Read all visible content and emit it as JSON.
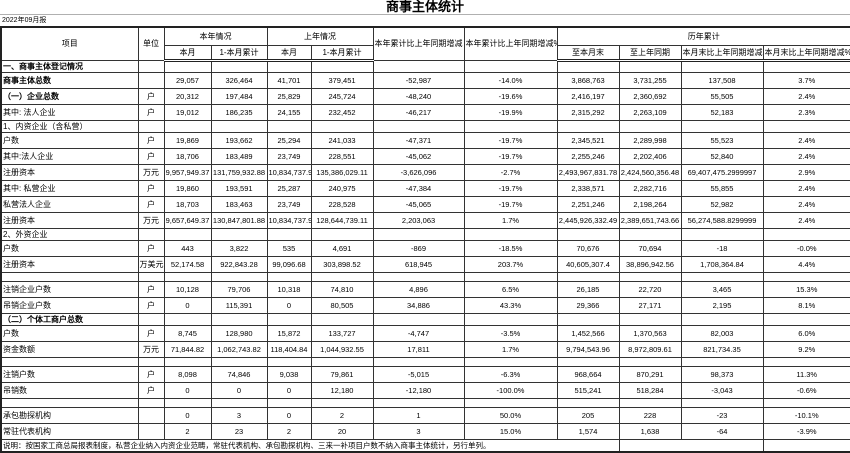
{
  "title": "商事主体统计",
  "report_date": "2022年09月报",
  "header": {
    "item": "项目",
    "unit": "单位",
    "this_year_group": "本年情况",
    "last_year_group": "上年情况",
    "this_month": "本月",
    "cumulative": "1-本月累计",
    "last_this_month": "本月",
    "last_cumulative": "1-本月累计",
    "yoy_change": "本年累计比上年同期增减",
    "yoy_change_pct": "本年累计比上年同期增减%",
    "historical_group": "历年累计",
    "to_month_end": "至本月末",
    "to_last_year_same_period": "至上年同期",
    "month_end_change": "本月末比上年同期增减",
    "month_end_change_pct": "本月末比上年同期增减%"
  },
  "rows": [
    {
      "type": "section",
      "bold": true,
      "indent": 0,
      "label": "一、商事主体登记情况",
      "unit": "",
      "cells": [
        "",
        "",
        "",
        "",
        "",
        "",
        "",
        "",
        "",
        ""
      ]
    },
    {
      "type": "data",
      "bold": true,
      "indent": 0,
      "label": "商事主体总数",
      "unit": "",
      "cells": [
        "29,057",
        "326,464",
        "41,701",
        "379,451",
        "-52,987",
        "-14.0%",
        "3,868,763",
        "3,731,255",
        "137,508",
        "3.7%"
      ]
    },
    {
      "type": "data",
      "bold": true,
      "indent": 0,
      "label": "（一）企业总数",
      "unit": "户",
      "cells": [
        "20,312",
        "197,484",
        "25,829",
        "245,724",
        "-48,240",
        "-19.6%",
        "2,416,197",
        "2,360,692",
        "55,505",
        "2.4%"
      ]
    },
    {
      "type": "data",
      "bold": false,
      "indent": 1,
      "label": "其中: 法人企业",
      "unit": "户",
      "cells": [
        "19,012",
        "186,235",
        "24,155",
        "232,452",
        "-46,217",
        "-19.9%",
        "2,315,292",
        "2,263,109",
        "52,183",
        "2.3%"
      ]
    },
    {
      "type": "section",
      "bold": false,
      "indent": 0,
      "label": "1、内资企业（含私营）",
      "unit": "",
      "cells": [
        "",
        "",
        "",
        "",
        "",
        "",
        "",
        "",
        "",
        ""
      ]
    },
    {
      "type": "data",
      "bold": false,
      "indent": 1,
      "label": "户数",
      "unit": "户",
      "cells": [
        "19,869",
        "193,662",
        "25,294",
        "241,033",
        "-47,371",
        "-19.7%",
        "2,345,521",
        "2,289,998",
        "55,523",
        "2.4%"
      ]
    },
    {
      "type": "data",
      "bold": false,
      "indent": 1,
      "label": "其中:法人企业",
      "unit": "户",
      "cells": [
        "18,706",
        "183,489",
        "23,749",
        "228,551",
        "-45,062",
        "-19.7%",
        "2,255,246",
        "2,202,406",
        "52,840",
        "2.4%"
      ]
    },
    {
      "type": "data",
      "bold": false,
      "indent": 1,
      "label": "注册资本",
      "unit": "万元",
      "cells": [
        "9,957,949.37",
        "131,759,932.88",
        "10,834,737.92",
        "135,386,029.11",
        "-3,626,096",
        "-2.7%",
        "2,493,967,831.78",
        "2,424,560,356.48",
        "69,407,475.2999997",
        "2.9%"
      ]
    },
    {
      "type": "data",
      "bold": false,
      "indent": 1,
      "label": "其中: 私营企业",
      "unit": "户",
      "cells": [
        "19,860",
        "193,591",
        "25,287",
        "240,975",
        "-47,384",
        "-19.7%",
        "2,338,571",
        "2,282,716",
        "55,855",
        "2.4%"
      ]
    },
    {
      "type": "data",
      "bold": false,
      "indent": 3,
      "label": "私营法人企业",
      "unit": "户",
      "cells": [
        "18,703",
        "183,463",
        "23,749",
        "228,528",
        "-45,065",
        "-19.7%",
        "2,251,246",
        "2,198,264",
        "52,982",
        "2.4%"
      ]
    },
    {
      "type": "data",
      "bold": false,
      "indent": 2,
      "label": "注册资本",
      "unit": "万元",
      "cells": [
        "9,657,649.37",
        "130,847,801.88",
        "10,834,737.92",
        "128,644,739.11",
        "2,203,063",
        "1.7%",
        "2,445,926,332.49",
        "2,389,651,743.66",
        "56,274,588.8299999",
        "2.4%"
      ]
    },
    {
      "type": "section",
      "bold": false,
      "indent": 0,
      "label": "2、外资企业",
      "unit": "",
      "cells": [
        "",
        "",
        "",
        "",
        "",
        "",
        "",
        "",
        "",
        ""
      ]
    },
    {
      "type": "data",
      "bold": false,
      "indent": 1,
      "label": "户数",
      "unit": "户",
      "cells": [
        "443",
        "3,822",
        "535",
        "4,691",
        "-869",
        "-18.5%",
        "70,676",
        "70,694",
        "-18",
        "-0.0%"
      ]
    },
    {
      "type": "data",
      "bold": false,
      "indent": 1,
      "label": "注册资本",
      "unit": "万美元",
      "cells": [
        "52,174.58",
        "922,843.28",
        "99,096.68",
        "303,898.52",
        "618,945",
        "203.7%",
        "40,605,307.4",
        "38,896,942.56",
        "1,708,364.84",
        "4.4%"
      ]
    },
    {
      "type": "spacer",
      "bold": false,
      "indent": 0,
      "label": "",
      "unit": "",
      "cells": [
        "",
        "",
        "",
        "",
        "",
        "",
        "",
        "",
        "",
        ""
      ]
    },
    {
      "type": "data",
      "bold": false,
      "indent": 1,
      "label": "注销企业户数",
      "unit": "户",
      "cells": [
        "10,128",
        "79,706",
        "10,318",
        "74,810",
        "4,896",
        "6.5%",
        "26,185",
        "22,720",
        "3,465",
        "15.3%"
      ]
    },
    {
      "type": "data",
      "bold": false,
      "indent": 1,
      "label": "吊销企业户数",
      "unit": "户",
      "cells": [
        "0",
        "115,391",
        "0",
        "80,505",
        "34,886",
        "43.3%",
        "29,366",
        "27,171",
        "2,195",
        "8.1%"
      ]
    },
    {
      "type": "section",
      "bold": true,
      "indent": 0,
      "label": "（二）个体工商户总数",
      "unit": "",
      "cells": [
        "",
        "",
        "",
        "",
        "",
        "",
        "",
        "",
        "",
        ""
      ]
    },
    {
      "type": "data",
      "bold": false,
      "indent": 1,
      "label": "户数",
      "unit": "户",
      "cells": [
        "8,745",
        "128,980",
        "15,872",
        "133,727",
        "-4,747",
        "-3.5%",
        "1,452,566",
        "1,370,563",
        "82,003",
        "6.0%"
      ]
    },
    {
      "type": "data",
      "bold": false,
      "indent": 1,
      "label": "资金数额",
      "unit": "万元",
      "cells": [
        "71,844.82",
        "1,062,743.82",
        "118,404.84",
        "1,044,932.55",
        "17,811",
        "1.7%",
        "9,794,543.96",
        "8,972,809.61",
        "821,734.35",
        "9.2%"
      ]
    },
    {
      "type": "spacer",
      "bold": false,
      "indent": 0,
      "label": "",
      "unit": "",
      "cells": [
        "",
        "",
        "",
        "",
        "",
        "",
        "",
        "",
        "",
        ""
      ]
    },
    {
      "type": "data",
      "bold": false,
      "indent": 1,
      "label": "注销户数",
      "unit": "户",
      "cells": [
        "8,098",
        "74,846",
        "9,038",
        "79,861",
        "-5,015",
        "-6.3%",
        "968,664",
        "870,291",
        "98,373",
        "11.3%"
      ]
    },
    {
      "type": "data",
      "bold": false,
      "indent": 1,
      "label": "吊销数",
      "unit": "户",
      "cells": [
        "0",
        "0",
        "0",
        "12,180",
        "-12,180",
        "-100.0%",
        "515,241",
        "518,284",
        "-3,043",
        "-0.6%"
      ]
    },
    {
      "type": "spacer",
      "bold": false,
      "indent": 0,
      "label": "",
      "unit": "",
      "cells": [
        "",
        "",
        "",
        "",
        "",
        "",
        "",
        "",
        "",
        ""
      ]
    },
    {
      "type": "data",
      "bold": false,
      "indent": 0,
      "label": "承包勘探机构",
      "unit": "",
      "cells": [
        "0",
        "3",
        "0",
        "2",
        "1",
        "50.0%",
        "205",
        "228",
        "-23",
        "-10.1%"
      ]
    },
    {
      "type": "data",
      "bold": false,
      "indent": 0,
      "label": "常驻代表机构",
      "unit": "",
      "cells": [
        "2",
        "23",
        "2",
        "20",
        "3",
        "15.0%",
        "1,574",
        "1,638",
        "-64",
        "-3.9%"
      ]
    }
  ],
  "note": "说明：按国家工商总局报表制度，私营企业纳入内资企业范畴，常驻代表机构、承包勘探机构、三来一补项目户数不纳入商事主体统计，另行单列。"
}
